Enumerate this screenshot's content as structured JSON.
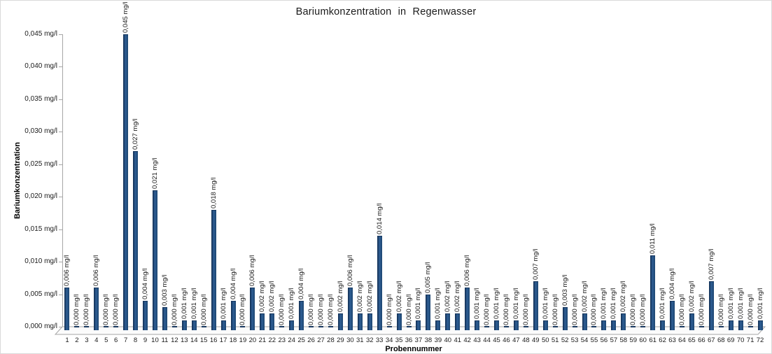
{
  "window": {
    "background": "#FFFFFF",
    "border_color": "#D9D9D9"
  },
  "chart_data": {
    "type": "bar",
    "title": "Bariumkonzentration in Regenwasser",
    "xlabel": "Probennummer",
    "ylabel": "Bariumkonzentration",
    "unit": "mg/l",
    "ylim": [
      0,
      0.045
    ],
    "ytick_step": 0.005,
    "grid": "off",
    "legend": "none",
    "bar_color": "#1F4E79",
    "bar_edge_color": "#17375E",
    "axis_color": "#A6A6A6",
    "value_label_rotation_deg": 90,
    "categories": [
      1,
      2,
      3,
      4,
      5,
      6,
      7,
      8,
      9,
      10,
      11,
      12,
      13,
      14,
      15,
      16,
      17,
      18,
      19,
      20,
      21,
      22,
      23,
      24,
      25,
      26,
      27,
      28,
      29,
      30,
      31,
      32,
      33,
      34,
      35,
      36,
      37,
      38,
      39,
      40,
      41,
      42,
      43,
      44,
      45,
      46,
      47,
      48,
      49,
      50,
      51,
      52,
      53,
      54,
      55,
      56,
      57,
      58,
      59,
      60,
      61,
      62,
      63,
      64,
      65,
      66,
      67,
      68,
      69,
      70,
      71,
      72
    ],
    "values": [
      0.006,
      0.0,
      0.0,
      0.006,
      0.0,
      0.0,
      0.045,
      0.027,
      0.004,
      0.021,
      0.003,
      0.0,
      0.001,
      0.001,
      0.0,
      0.018,
      0.001,
      0.004,
      0.0,
      0.006,
      0.002,
      0.002,
      0.0,
      0.001,
      0.004,
      0.0,
      0.0,
      0.0,
      0.002,
      0.006,
      0.002,
      0.002,
      0.014,
      0.0,
      0.002,
      0.0,
      0.001,
      0.005,
      0.001,
      0.002,
      0.002,
      0.006,
      0.001,
      0.0,
      0.001,
      0.0,
      0.001,
      0.0,
      0.007,
      0.001,
      0.0,
      0.003,
      0.0,
      0.002,
      0.0,
      0.001,
      0.001,
      0.002,
      0.0,
      0.0,
      0.011,
      0.001,
      0.004,
      0.0,
      0.002,
      0.0,
      0.007,
      0.0,
      0.001,
      0.001,
      0.0,
      0.001
    ],
    "value_labels": [
      "0,006 mg/l",
      "0,000 mg/l",
      "0,000 mg/l",
      "0,006 mg/l",
      "0,000 mg/l",
      "0,000 mg/l",
      "0,045 mg/l",
      "0,027 mg/l",
      "0,004 mg/l",
      "0,021 mg/l",
      "0,003 mg/l",
      "0,000 mg/l",
      "0,001 mg/l",
      "0,001 mg/l",
      "0,000 mg/l",
      "0,018 mg/l",
      "0,001 mg/l",
      "0,004 mg/l",
      "0,000 mg/l",
      "0,006 mg/l",
      "0,002 mg/l",
      "0,002 mg/l",
      "0,000 mg/l",
      "0,001 mg/l",
      "0,004 mg/l",
      "0,000 mg/l",
      "0,000 mg/l",
      "0,000 mg/l",
      "0,002 mg/l",
      "0,006 mg/l",
      "0,002 mg/l",
      "0,002 mg/l",
      "0,014 mg/l",
      "0,000 mg/l",
      "0,002 mg/l",
      "0,000 mg/l",
      "0,001 mg/l",
      "0,005 mg/l",
      "0,001 mg/l",
      "0,002 mg/l",
      "0,002 mg/l",
      "0,006 mg/l",
      "0,001 mg/l",
      "0,000 mg/l",
      "0,001 mg/l",
      "0,000 mg/l",
      "0,001 mg/l",
      "0,000 mg/l",
      "0,007 mg/l",
      "0,001 mg/l",
      "0,000 mg/l",
      "0,003 mg/l",
      "0,000 mg/l",
      "0,002 mg/l",
      "0,000 mg/l",
      "0,001 mg/l",
      "0,001 mg/l",
      "0,002 mg/l",
      "0,000 mg/l",
      "0,000 mg/l",
      "0,011 mg/l",
      "0,001 mg/l",
      "0,004 mg/l",
      "0,000 mg/l",
      "0,002 mg/l",
      "0,000 mg/l",
      "0,007 mg/l",
      "0,000 mg/l",
      "0,001 mg/l",
      "0,001 mg/l",
      "0,000 mg/l",
      "0,001 mg/l"
    ],
    "ytick_labels": [
      "0,000 mg/l",
      "0,005 mg/l",
      "0,010 mg/l",
      "0,015 mg/l",
      "0,020 mg/l",
      "0,025 mg/l",
      "0,030 mg/l",
      "0,035 mg/l",
      "0,040 mg/l",
      "0,045 mg/l"
    ]
  }
}
